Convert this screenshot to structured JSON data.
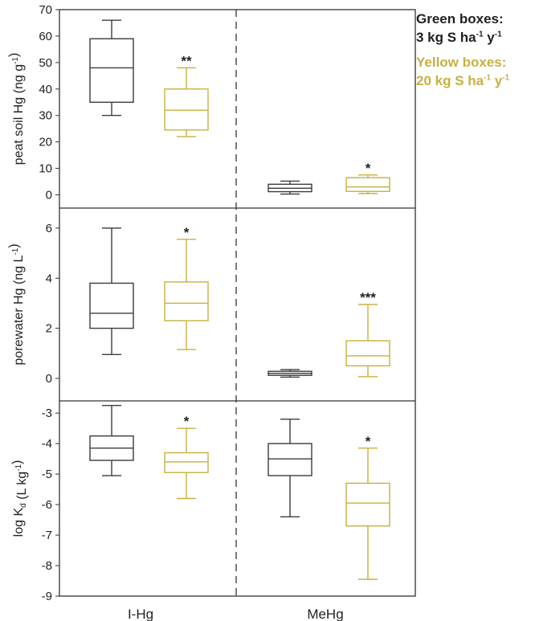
{
  "legend": {
    "green_title": "Green boxes:",
    "green_prefix": "3 kg S ha",
    "yellow_title": "Yellow boxes:",
    "yellow_prefix": "20 kg S ha",
    "unit_exp1": "-1",
    "unit_mid": " y",
    "unit_exp2": "-1"
  },
  "colors": {
    "green": "#3c3c3c",
    "yellow": "#c8b040",
    "axis": "#333333"
  },
  "chart_data": {
    "type": "box",
    "categories": [
      "I-Hg",
      "MeHg"
    ],
    "panels": [
      {
        "ylabel_parts": [
          {
            "t": "peat soil Hg (ng g"
          },
          {
            "t": "-1",
            "sup": true
          },
          {
            "t": ")"
          }
        ],
        "ylim": [
          -5,
          70
        ],
        "yticks": [
          0,
          10,
          20,
          30,
          40,
          50,
          60,
          70
        ],
        "boxes": [
          {
            "category": "I-Hg",
            "group": "green",
            "whisker_low": 30,
            "q1": 35,
            "median": 48,
            "q3": 59,
            "whisker_high": 66,
            "sig": ""
          },
          {
            "category": "I-Hg",
            "group": "yellow",
            "whisker_low": 22,
            "q1": 24.5,
            "median": 32,
            "q3": 40,
            "whisker_high": 48,
            "sig": "**"
          },
          {
            "category": "MeHg",
            "group": "green",
            "whisker_low": 0.3,
            "q1": 1.2,
            "median": 2.5,
            "q3": 4,
            "whisker_high": 5.2,
            "sig": ""
          },
          {
            "category": "MeHg",
            "group": "yellow",
            "whisker_low": 0.5,
            "q1": 1.3,
            "median": 3,
            "q3": 6.5,
            "whisker_high": 7.5,
            "sig": "*"
          }
        ]
      },
      {
        "ylabel_parts": [
          {
            "t": "porewater Hg (ng L"
          },
          {
            "t": "-1",
            "sup": true
          },
          {
            "t": ")"
          }
        ],
        "ylim": [
          -0.9,
          6.8
        ],
        "yticks": [
          0,
          2,
          4,
          6
        ],
        "boxes": [
          {
            "category": "I-Hg",
            "group": "green",
            "whisker_low": 0.95,
            "q1": 2.0,
            "median": 2.6,
            "q3": 3.8,
            "whisker_high": 6.0,
            "sig": ""
          },
          {
            "category": "I-Hg",
            "group": "yellow",
            "whisker_low": 1.15,
            "q1": 2.3,
            "median": 3.0,
            "q3": 3.85,
            "whisker_high": 5.55,
            "sig": "*"
          },
          {
            "category": "MeHg",
            "group": "green",
            "whisker_low": 0.05,
            "q1": 0.12,
            "median": 0.2,
            "q3": 0.28,
            "whisker_high": 0.35,
            "sig": ""
          },
          {
            "category": "MeHg",
            "group": "yellow",
            "whisker_low": 0.07,
            "q1": 0.5,
            "median": 0.9,
            "q3": 1.5,
            "whisker_high": 2.95,
            "sig": "***"
          }
        ]
      },
      {
        "ylabel_parts": [
          {
            "t": "log K"
          },
          {
            "t": "d",
            "sub": true
          },
          {
            "t": " (L kg"
          },
          {
            "t": "-1",
            "sup": true
          },
          {
            "t": ")"
          }
        ],
        "ylim": [
          -9,
          -2.6
        ],
        "yticks": [
          -3,
          -4,
          -5,
          -6,
          -7,
          -8,
          -9
        ],
        "boxes": [
          {
            "category": "I-Hg",
            "group": "green",
            "whisker_low": -5.05,
            "q1": -4.55,
            "median": -4.15,
            "q3": -3.75,
            "whisker_high": -2.75,
            "sig": ""
          },
          {
            "category": "I-Hg",
            "group": "yellow",
            "whisker_low": -5.8,
            "q1": -4.95,
            "median": -4.6,
            "q3": -4.3,
            "whisker_high": -3.5,
            "sig": "*"
          },
          {
            "category": "MeHg",
            "group": "green",
            "whisker_low": -6.4,
            "q1": -5.05,
            "median": -4.5,
            "q3": -4.0,
            "whisker_high": -3.2,
            "sig": ""
          },
          {
            "category": "MeHg",
            "group": "yellow",
            "whisker_low": -8.45,
            "q1": -6.7,
            "median": -5.95,
            "q3": -5.3,
            "whisker_high": -4.15,
            "sig": "*"
          }
        ]
      }
    ]
  }
}
